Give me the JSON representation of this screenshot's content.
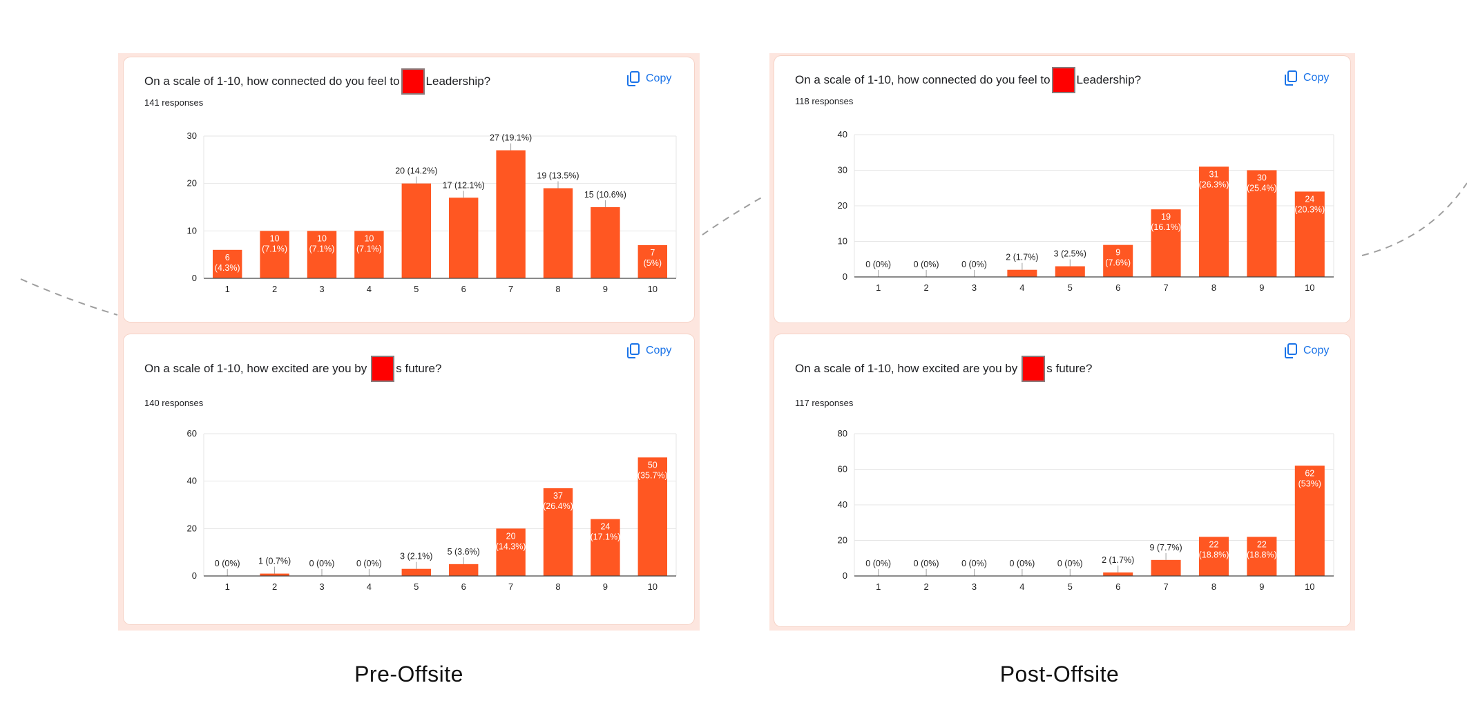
{
  "footer": {
    "left": "Pre-Offsite",
    "right": "Post-Offsite"
  },
  "accent_color": "#ff5722",
  "copy_icon": "copy-icon",
  "cards": [
    {
      "question_prefix": "On a scale of 1-10, how connected do you feel to",
      "question_suffix": "Leadership?",
      "responses": "141 responses",
      "copy_label": "Copy"
    },
    {
      "question_prefix": "On a scale of 1-10, how excited are you by",
      "question_suffix": "s future?",
      "responses": "140 responses",
      "copy_label": "Copy"
    },
    {
      "question_prefix": "On a scale of 1-10, how connected do you feel to",
      "question_suffix": "Leadership?",
      "responses": "118 responses",
      "copy_label": "Copy"
    },
    {
      "question_prefix": "On a scale of 1-10, how excited are you by",
      "question_suffix": "s future?",
      "responses": "117 responses",
      "copy_label": "Copy"
    }
  ],
  "chart_data": [
    {
      "type": "bar",
      "categories": [
        "1",
        "2",
        "3",
        "4",
        "5",
        "6",
        "7",
        "8",
        "9",
        "10"
      ],
      "values": [
        6,
        10,
        10,
        10,
        20,
        17,
        27,
        19,
        15,
        7
      ],
      "labels": [
        "6 (4.3%)",
        "10 (7.1%)",
        "10 (7.1%)",
        "10 (7.1%)",
        "20 (14.2%)",
        "17 (12.1%)",
        "27 (19.1%)",
        "19 (13.5%)",
        "15 (10.6%)",
        "7 (5%)"
      ],
      "yticks": [
        0,
        10,
        20,
        30
      ],
      "ylim": [
        0,
        30
      ],
      "grid": true
    },
    {
      "type": "bar",
      "categories": [
        "1",
        "2",
        "3",
        "4",
        "5",
        "6",
        "7",
        "8",
        "9",
        "10"
      ],
      "values": [
        0,
        1,
        0,
        0,
        3,
        5,
        20,
        37,
        24,
        50
      ],
      "labels": [
        "0 (0%)",
        "1 (0.7%)",
        "0 (0%)",
        "0 (0%)",
        "3 (2.1%)",
        "5 (3.6%)",
        "20 (14.3%)",
        "37 (26.4%)",
        "24 (17.1%)",
        "50 (35.7%)"
      ],
      "yticks": [
        0,
        20,
        40,
        60
      ],
      "ylim": [
        0,
        60
      ],
      "grid": true
    },
    {
      "type": "bar",
      "categories": [
        "1",
        "2",
        "3",
        "4",
        "5",
        "6",
        "7",
        "8",
        "9",
        "10"
      ],
      "values": [
        0,
        0,
        0,
        2,
        3,
        9,
        19,
        31,
        30,
        24
      ],
      "labels": [
        "0 (0%)",
        "0 (0%)",
        "0 (0%)",
        "2 (1.7%)",
        "3 (2.5%)",
        "9 (7.6%)",
        "19 (16.1%)",
        "31 (26.3%)",
        "30 (25.4%)",
        "24 (20.3%)"
      ],
      "yticks": [
        0,
        10,
        20,
        30,
        40
      ],
      "ylim": [
        0,
        40
      ],
      "grid": true
    },
    {
      "type": "bar",
      "categories": [
        "1",
        "2",
        "3",
        "4",
        "5",
        "6",
        "7",
        "8",
        "9",
        "10"
      ],
      "values": [
        0,
        0,
        0,
        0,
        0,
        2,
        9,
        22,
        22,
        62
      ],
      "labels": [
        "0 (0%)",
        "0 (0%)",
        "0 (0%)",
        "0 (0%)",
        "0 (0%)",
        "2 (1.7%)",
        "9 (7.7%)",
        "22 (18.8%)",
        "22 (18.8%)",
        "62 (53%)"
      ],
      "yticks": [
        0,
        20,
        40,
        60,
        80
      ],
      "ylim": [
        0,
        80
      ],
      "grid": true
    }
  ]
}
